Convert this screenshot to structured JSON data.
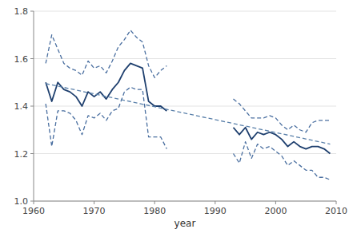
{
  "chart_data": {
    "type": "line",
    "x_label": "year",
    "x": [
      1962,
      1963,
      1964,
      1965,
      1966,
      1967,
      1968,
      1969,
      1970,
      1971,
      1972,
      1973,
      1974,
      1975,
      1976,
      1977,
      1978,
      1979,
      1980,
      1981,
      1982,
      null,
      1993,
      1994,
      1995,
      1996,
      1997,
      1998,
      1999,
      2000,
      2001,
      2002,
      2003,
      2004,
      2005,
      2006,
      2007,
      2008,
      2009
    ],
    "series": [
      {
        "color": "#4a6fa0",
        "line_style": "dashed",
        "values": [
          1.58,
          1.7,
          1.64,
          1.58,
          1.56,
          1.55,
          1.53,
          1.59,
          1.56,
          1.57,
          1.54,
          1.59,
          1.65,
          1.68,
          1.72,
          1.69,
          1.67,
          1.57,
          1.52,
          1.55,
          1.57,
          null,
          1.43,
          1.41,
          1.38,
          1.35,
          1.35,
          1.35,
          1.36,
          1.35,
          1.32,
          1.3,
          1.32,
          1.3,
          1.29,
          1.33,
          1.34,
          1.34,
          1.34
        ]
      },
      {
        "color": "#4a6fa0",
        "line_style": "dashed",
        "values": [
          1.41,
          1.23,
          1.38,
          1.38,
          1.37,
          1.34,
          1.28,
          1.36,
          1.35,
          1.37,
          1.34,
          1.38,
          1.39,
          1.46,
          1.48,
          1.47,
          1.47,
          1.27,
          1.27,
          1.27,
          1.22,
          null,
          1.2,
          1.16,
          1.25,
          1.18,
          1.24,
          1.22,
          1.23,
          1.21,
          1.19,
          1.15,
          1.17,
          1.15,
          1.13,
          1.13,
          1.1,
          1.1,
          1.09
        ]
      },
      {
        "color": "#1e3f6e",
        "line_style": "solid",
        "values": [
          1.5,
          1.42,
          1.5,
          1.47,
          1.46,
          1.44,
          1.4,
          1.46,
          1.44,
          1.46,
          1.43,
          1.47,
          1.5,
          1.55,
          1.58,
          1.57,
          1.56,
          1.42,
          1.4,
          1.4,
          1.38,
          null,
          1.31,
          1.28,
          1.31,
          1.26,
          1.29,
          1.28,
          1.29,
          1.28,
          1.26,
          1.23,
          1.25,
          1.23,
          1.22,
          1.23,
          1.23,
          1.22,
          1.2
        ]
      },
      {
        "color": "#5a80aa",
        "line_style": "dashed",
        "x": [
          1962,
          2009
        ],
        "values": [
          1.495,
          1.24
        ]
      }
    ],
    "xlim": [
      1960,
      2010
    ],
    "ylim": [
      1.0,
      1.8
    ],
    "xticks": [
      1960,
      1970,
      1980,
      1990,
      2000,
      2010
    ],
    "yticks": [
      {
        "value": 1.0,
        "label": "1.0"
      },
      1.2,
      1.4,
      1.6,
      1.8
    ],
    "grid": "y"
  }
}
